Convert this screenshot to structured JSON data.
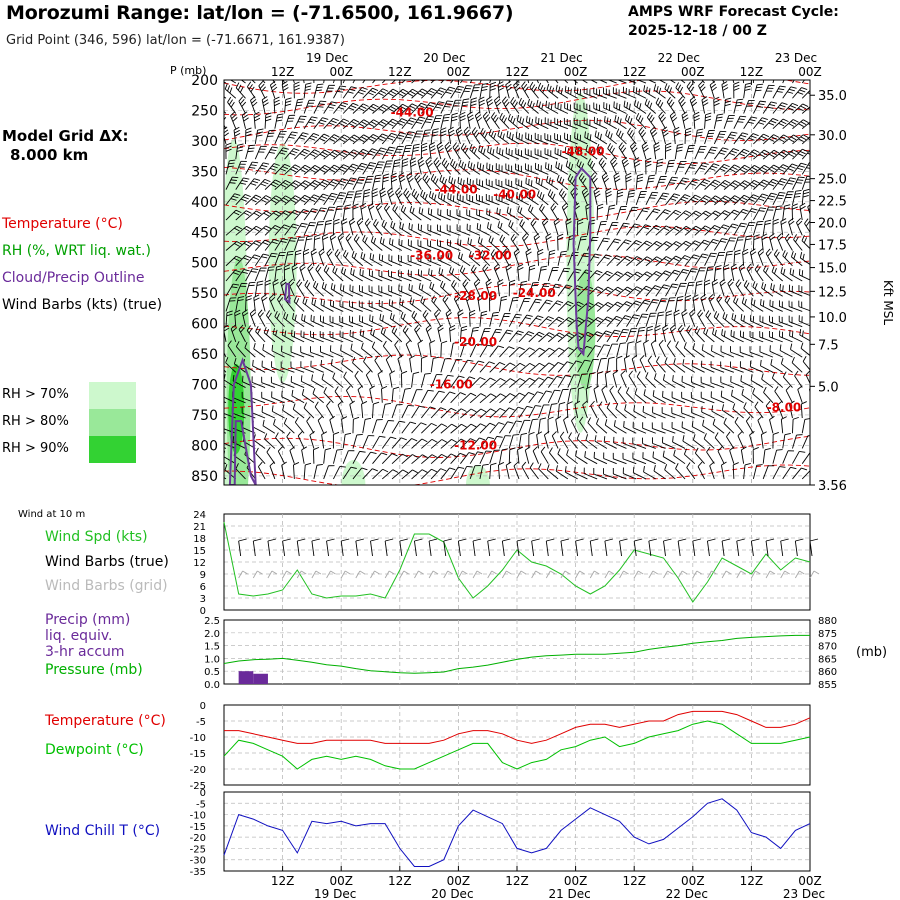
{
  "header": {
    "title": "Morozumi Range:  lat/lon = (-71.6500, 161.9667)",
    "subtitle": "Grid Point (346, 596) lat/lon = (-71.6671, 161.9387)",
    "cycle_line1": "AMPS WRF Forecast Cycle:",
    "cycle_line2": "2025-12-18 / 00  Z"
  },
  "grid_note": {
    "line1": "Model Grid ΔX:",
    "line2": "8.000 km"
  },
  "legend": {
    "temperature": "Temperature (°C)",
    "rh": "RH (%, WRT liq. wat.)",
    "cloud": "Cloud/Precip Outline",
    "wind": "Wind Barbs (kts) (true)"
  },
  "rh_legend": [
    {
      "label": "RH > 70%",
      "color": "#cdf8cd"
    },
    {
      "label": "RH > 80%",
      "color": "#99e899"
    },
    {
      "label": "RH > 90%",
      "color": "#33d233"
    }
  ],
  "time_axis": {
    "top_hours": [
      "12Z",
      "00Z",
      "12Z",
      "00Z",
      "12Z",
      "00Z",
      "12Z",
      "00Z",
      "12Z",
      "00Z"
    ],
    "top_hour_times": [
      12,
      24,
      36,
      48,
      60,
      72,
      84,
      96,
      108,
      120
    ],
    "dates": [
      "19 Dec",
      "20 Dec",
      "21 Dec",
      "22 Dec",
      "23 Dec"
    ],
    "date_times": [
      24,
      48,
      72,
      96,
      120
    ],
    "bottom_hours": [
      "12Z",
      "00Z",
      "12Z",
      "00Z",
      "12Z",
      "00Z",
      "12Z",
      "00Z",
      "12Z",
      "00Z"
    ],
    "bottom_hour_times": [
      12,
      24,
      36,
      48,
      60,
      72,
      84,
      96,
      108,
      120
    ]
  },
  "colors": {
    "temperature": "#e00000",
    "dewpoint": "#00c000",
    "wind_speed": "#22c022",
    "pressure": "#00b000",
    "precip": "#6a2a9a",
    "wind_chill": "#1010c0",
    "cloud_outline": "#6a3a9a",
    "grid_barbs": "#a8a8a8"
  },
  "chart_data": [
    {
      "type": "contour",
      "id": "cross_section",
      "ylabel": "P (mb)",
      "ylabel_right": "Kft MSL",
      "x_range_hours": [
        0,
        120
      ],
      "y_range_mb": [
        200,
        865
      ],
      "pressure_ticks": [
        "200",
        "250",
        "300",
        "350",
        "400",
        "450",
        "500",
        "550",
        "600",
        "650",
        "700",
        "750",
        "800",
        "850"
      ],
      "pressure_tick_values": [
        200,
        250,
        300,
        350,
        400,
        450,
        500,
        550,
        600,
        650,
        700,
        750,
        800,
        850
      ],
      "height_ticks": [
        "35.0",
        "30.0",
        "25.0",
        "22.5",
        "20.0",
        "17.5",
        "15.0",
        "12.5",
        "10.0",
        "7.5",
        "5.0",
        "3.56"
      ],
      "height_tick_pressures": [
        225,
        290,
        362,
        398,
        434,
        470,
        508,
        547,
        589,
        634,
        703,
        865
      ],
      "temperature_contour_labels": [
        {
          "text": "-44.00",
          "t": 37,
          "p": 253
        },
        {
          "text": "-48.00",
          "t": 72,
          "p": 317
        },
        {
          "text": "-44.00",
          "t": 46,
          "p": 380
        },
        {
          "text": "-40.00",
          "t": 58,
          "p": 388
        },
        {
          "text": "-36.00",
          "t": 41,
          "p": 488
        },
        {
          "text": "-32.00",
          "t": 53,
          "p": 488
        },
        {
          "text": "-28.00",
          "t": 50,
          "p": 555
        },
        {
          "text": "-24.00",
          "t": 62,
          "p": 550
        },
        {
          "text": "-20.00",
          "t": 50,
          "p": 630
        },
        {
          "text": "-16.00",
          "t": 45,
          "p": 700
        },
        {
          "text": "-12.00",
          "t": 50,
          "p": 800
        },
        {
          "text": "-8.00",
          "t": 114,
          "p": 738
        }
      ],
      "temperature_contour_lines_degC": [
        -48,
        -44,
        -40,
        -36,
        -32,
        -28,
        -24,
        -20,
        -16,
        -12,
        -8
      ]
    },
    {
      "type": "line",
      "id": "wind_10m",
      "title": "Wind at 10 m",
      "series_labels": {
        "speed": "Wind Spd (kts)",
        "true_barbs": "Wind Barbs (true)",
        "grid_barbs": "Wind Barbs (grid)"
      },
      "ylim": [
        0,
        24
      ],
      "yticks": [
        "0",
        "3",
        "6",
        "9",
        "12",
        "15",
        "18",
        "21",
        "24"
      ],
      "x_hours": [
        0,
        3,
        6,
        9,
        12,
        15,
        18,
        21,
        24,
        27,
        30,
        33,
        36,
        39,
        42,
        45,
        48,
        51,
        54,
        57,
        60,
        63,
        66,
        69,
        72,
        75,
        78,
        81,
        84,
        87,
        90,
        93,
        96,
        99,
        102,
        105,
        108,
        111,
        114,
        117,
        120
      ],
      "speed_kts": [
        22,
        4,
        3.5,
        4,
        5,
        10,
        4,
        3,
        3.5,
        3.5,
        4,
        3,
        10,
        19,
        19,
        17,
        8,
        3,
        6,
        10,
        15,
        12,
        11,
        9,
        6,
        4,
        6,
        10,
        15,
        14,
        13,
        8,
        2,
        7,
        13,
        11,
        9,
        14,
        10,
        13,
        12
      ]
    },
    {
      "type": "bar_line",
      "id": "precip_pressure",
      "precip_label": [
        "Precip (mm)",
        "liq. equiv.",
        "3-hr accum"
      ],
      "pressure_label": "Pressure (mb)",
      "left_ylim": [
        0,
        2.5
      ],
      "left_yticks": [
        "0.0",
        "0.5",
        "1.0",
        "1.5",
        "2.0",
        "2.5"
      ],
      "right_ylim": [
        855,
        880
      ],
      "right_yticks": [
        "855",
        "860",
        "865",
        "870",
        "875",
        "880"
      ],
      "right_unit": "(mb)",
      "precip_bars": [
        {
          "t_start": 3,
          "t_end": 6,
          "mm": 0.5
        },
        {
          "t_start": 6,
          "t_end": 9,
          "mm": 0.4
        }
      ],
      "pressure_hours": [
        0,
        3,
        6,
        9,
        12,
        15,
        18,
        21,
        24,
        27,
        30,
        33,
        36,
        39,
        42,
        45,
        48,
        51,
        54,
        57,
        60,
        63,
        66,
        69,
        72,
        75,
        78,
        81,
        84,
        87,
        90,
        93,
        96,
        99,
        102,
        105,
        108,
        111,
        114,
        117,
        120
      ],
      "pressure_mb": [
        863,
        864,
        864.5,
        864.7,
        865,
        864.3,
        863.5,
        862.5,
        862,
        861,
        860.2,
        859.8,
        859.4,
        859.2,
        859.4,
        859.7,
        861,
        861.6,
        862.4,
        863.5,
        864.6,
        865.5,
        866,
        866.3,
        866.6,
        866.6,
        866.6,
        867,
        867.4,
        868.5,
        869.3,
        870,
        870.9,
        871.5,
        872,
        872.8,
        873.2,
        873.5,
        873.8,
        874,
        874
      ]
    },
    {
      "type": "line",
      "id": "temp_dewpoint",
      "series": [
        {
          "name": "Temperature (°C)",
          "values": [
            -8,
            -8,
            -9,
            -10,
            -11,
            -12,
            -12,
            -11,
            -11,
            -11,
            -11,
            -12,
            -12,
            -12,
            -12,
            -11,
            -9,
            -8,
            -8,
            -9,
            -11,
            -12,
            -11,
            -9,
            -7,
            -6,
            -6,
            -7,
            -6,
            -5,
            -5,
            -3,
            -2,
            -2,
            -2,
            -3,
            -5,
            -7,
            -7,
            -6,
            -4
          ]
        },
        {
          "name": "Dewpoint (°C)",
          "values": [
            -16,
            -11,
            -12,
            -14,
            -16,
            -20,
            -17,
            -16,
            -17,
            -16,
            -17,
            -19,
            -20,
            -20,
            -18,
            -16,
            -14,
            -12,
            -12,
            -18,
            -20,
            -18,
            -17,
            -14,
            -13,
            -11,
            -10,
            -13,
            -12,
            -10,
            -9,
            -8,
            -6,
            -5,
            -6,
            -9,
            -12,
            -12,
            -12,
            -11,
            -10
          ]
        }
      ],
      "x_hours": [
        0,
        3,
        6,
        9,
        12,
        15,
        18,
        21,
        24,
        27,
        30,
        33,
        36,
        39,
        42,
        45,
        48,
        51,
        54,
        57,
        60,
        63,
        66,
        69,
        72,
        75,
        78,
        81,
        84,
        87,
        90,
        93,
        96,
        99,
        102,
        105,
        108,
        111,
        114,
        117,
        120
      ],
      "ylim": [
        -25,
        0
      ],
      "yticks": [
        "-25",
        "-20",
        "-15",
        "-10",
        "-5",
        "0"
      ]
    },
    {
      "type": "line",
      "id": "wind_chill",
      "series": [
        {
          "name": "Wind Chill T (°C)",
          "values": [
            -28,
            -10,
            -12,
            -15,
            -17,
            -27,
            -13,
            -14,
            -13,
            -15,
            -14,
            -14,
            -25,
            -33,
            -33,
            -30,
            -15,
            -8,
            -11,
            -14,
            -25,
            -27,
            -25,
            -17,
            -12,
            -7,
            -10,
            -13,
            -20,
            -23,
            -21,
            -16,
            -11,
            -5,
            -3,
            -8,
            -18,
            -20,
            -25,
            -17,
            -14
          ]
        }
      ],
      "x_hours": [
        0,
        3,
        6,
        9,
        12,
        15,
        18,
        21,
        24,
        27,
        30,
        33,
        36,
        39,
        42,
        45,
        48,
        51,
        54,
        57,
        60,
        63,
        66,
        69,
        72,
        75,
        78,
        81,
        84,
        87,
        90,
        93,
        96,
        99,
        102,
        105,
        108,
        111,
        114,
        117,
        120
      ],
      "ylim": [
        -35,
        0
      ],
      "yticks": [
        "-35",
        "-30",
        "-25",
        "-20",
        "-15",
        "-10",
        "-5",
        "0"
      ]
    }
  ]
}
